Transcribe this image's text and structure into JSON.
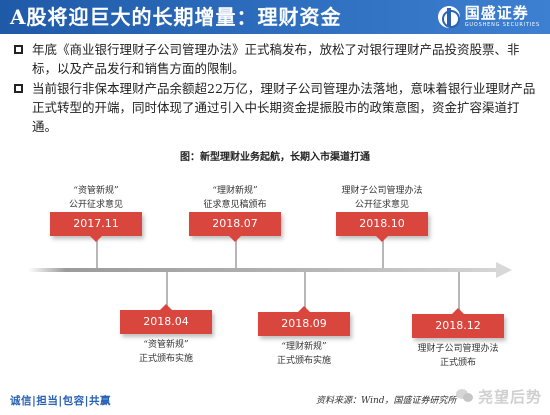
{
  "header": {
    "title": "A股将迎巨大的长期增量：理财资金",
    "logo_cn": "国盛证券",
    "logo_en": "GUOSHENG SECURITIES"
  },
  "bullets": [
    "年底《商业银行理财子公司管理办法》正式稿发布，放松了对银行理财产品投资股票、非标，以及产品发行和销售方面的限制。",
    "当前银行非保本理财产品余额超22万亿，理财子公司管理办法落地，意味着银行业理财产品正式转型的开端，同时体现了通过引入中长期资金提振股市的政策意图，资金扩容渠道打通。"
  ],
  "figure": {
    "title": "图：新型理财业务起航，长期入市渠道打通",
    "events": [
      {
        "date": "2017.11",
        "lines": [
          "“资管新规”",
          "公开征求意见"
        ]
      },
      {
        "date": "2018.04",
        "lines": [
          "“资管新规”",
          "正式颁布实施"
        ]
      },
      {
        "date": "2018.07",
        "lines": [
          "“理财新规”",
          "征求意见稿颁布"
        ]
      },
      {
        "date": "2018.09",
        "lines": [
          "“理财新规”",
          "正式颁布实施"
        ]
      },
      {
        "date": "2018.10",
        "lines": [
          "理财子公司管理办法",
          "公开征求意见"
        ]
      },
      {
        "date": "2018.12",
        "lines": [
          "理财子公司管理办法",
          "正式颁布"
        ]
      }
    ]
  },
  "footer": {
    "left": "诚信|担当|包容|共赢",
    "source": "资料来源：Wind，国盛证券研究所",
    "watermark": "尧望后势"
  },
  "colors": {
    "header_blue": "#2a62b4",
    "date_red": "#d9463e"
  }
}
